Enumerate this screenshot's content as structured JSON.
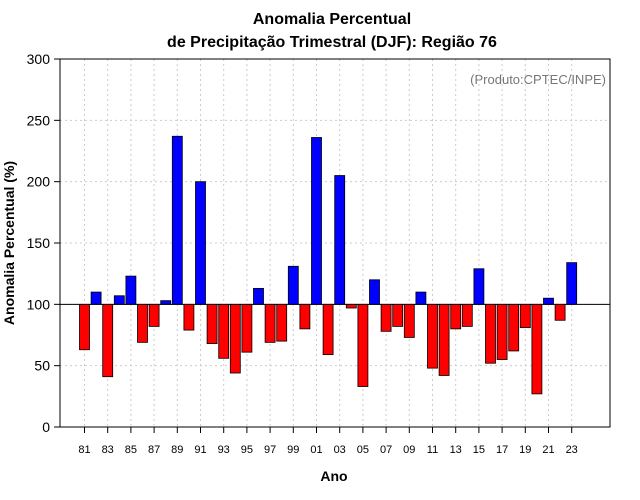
{
  "chart_data": {
    "type": "bar",
    "title": "Anomalia Percentual",
    "subtitle": "de Precipitação Trimestral (DJF): Região 76",
    "xlabel": "Ano",
    "ylabel": "Anomalia Percentual (%)",
    "credit": "(Produto:CPTEC/INPE)",
    "baseline": 100,
    "ylim": [
      0,
      300
    ],
    "yticks": [
      0,
      50,
      100,
      150,
      200,
      250,
      300
    ],
    "xtick_labels": [
      "81",
      "83",
      "85",
      "87",
      "89",
      "91",
      "93",
      "95",
      "97",
      "99",
      "01",
      "03",
      "05",
      "07",
      "09",
      "11",
      "13",
      "15",
      "17",
      "19",
      "21",
      "23"
    ],
    "grid": true,
    "colors": {
      "above": "#0000ff",
      "below": "#ff0000",
      "grid": "#cccccc"
    },
    "categories": [
      "1981",
      "1982",
      "1983",
      "1984",
      "1985",
      "1986",
      "1987",
      "1988",
      "1989",
      "1990",
      "1991",
      "1992",
      "1993",
      "1994",
      "1995",
      "1996",
      "1997",
      "1998",
      "1999",
      "2000",
      "2001",
      "2002",
      "2003",
      "2004",
      "2005",
      "2006",
      "2007",
      "2008",
      "2009",
      "2010",
      "2011",
      "2012",
      "2013",
      "2014",
      "2015",
      "2016",
      "2017",
      "2018",
      "2019",
      "2020",
      "2021",
      "2022",
      "2023"
    ],
    "values": [
      63,
      110,
      41,
      107,
      123,
      69,
      82,
      103,
      237,
      79,
      200,
      68,
      56,
      44,
      61,
      113,
      69,
      70,
      131,
      80,
      236,
      59,
      205,
      97,
      33,
      120,
      78,
      82,
      73,
      110,
      48,
      42,
      80,
      82,
      129,
      52,
      55,
      62,
      81,
      27,
      105,
      87,
      134
    ]
  }
}
